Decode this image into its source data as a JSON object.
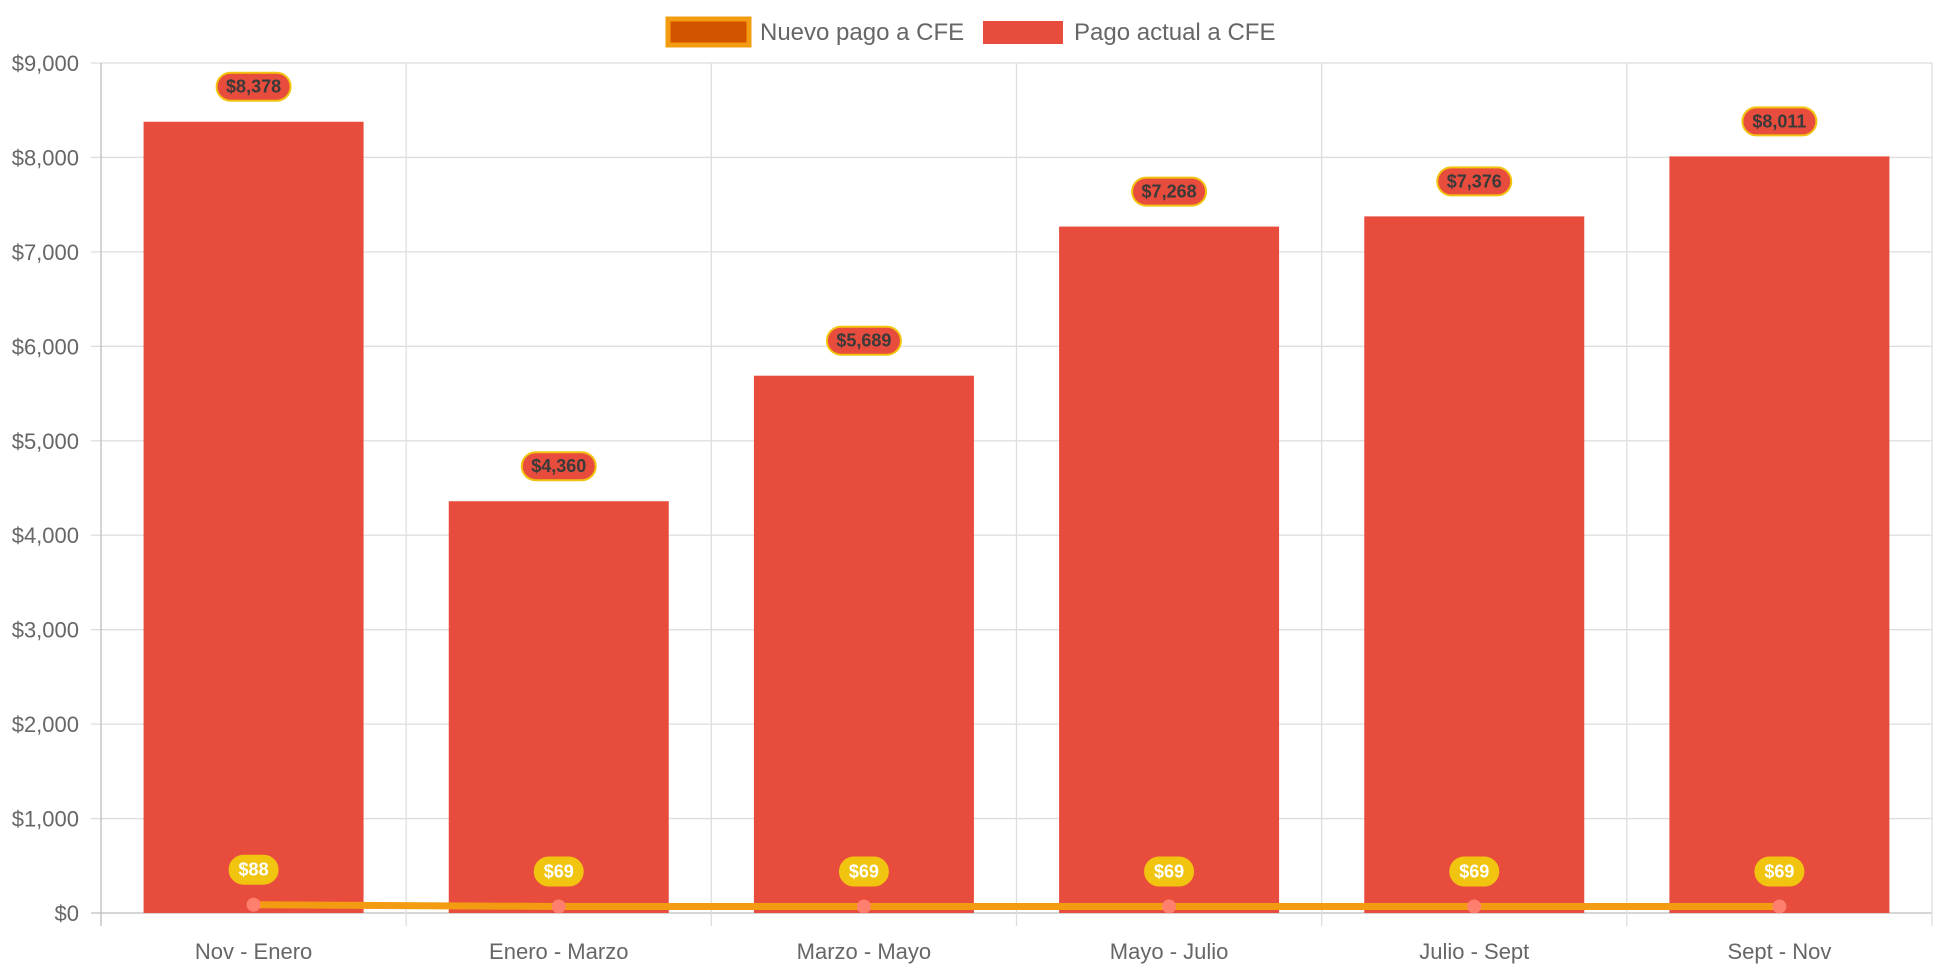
{
  "chart_data": {
    "type": "bar",
    "categories": [
      "Nov - Enero",
      "Enero - Marzo",
      "Marzo - Mayo",
      "Mayo - Julio",
      "Julio - Sept",
      "Sept - Nov"
    ],
    "series": [
      {
        "name": "Pago actual a CFE",
        "type": "bar",
        "values": [
          8378,
          4360,
          5689,
          7268,
          7376,
          8011
        ],
        "labels": [
          "$8,378",
          "$4,360",
          "$5,689",
          "$7,268",
          "$7,376",
          "$8,011"
        ],
        "color": "#e84c3d"
      },
      {
        "name": "Nuevo pago a CFE",
        "type": "line",
        "values": [
          88,
          69,
          69,
          69,
          69,
          69
        ],
        "labels": [
          "$88",
          "$69",
          "$69",
          "$69",
          "$69",
          "$69"
        ],
        "color": "#f39c12",
        "point_color": "#ff7f6e",
        "legend_fill": "#d35400"
      }
    ],
    "ylim": [
      0,
      9000
    ],
    "ytick_values": [
      0,
      1000,
      2000,
      3000,
      4000,
      5000,
      6000,
      7000,
      8000,
      9000
    ],
    "ytick_labels": [
      "$0",
      "$1,000",
      "$2,000",
      "$3,000",
      "$4,000",
      "$5,000",
      "$6,000",
      "$7,000",
      "$8,000",
      "$9,000"
    ],
    "title": "",
    "xlabel": "",
    "ylabel": "",
    "grid": true,
    "legend_position": "top-center",
    "label_badge_color": "#f1c40f"
  }
}
